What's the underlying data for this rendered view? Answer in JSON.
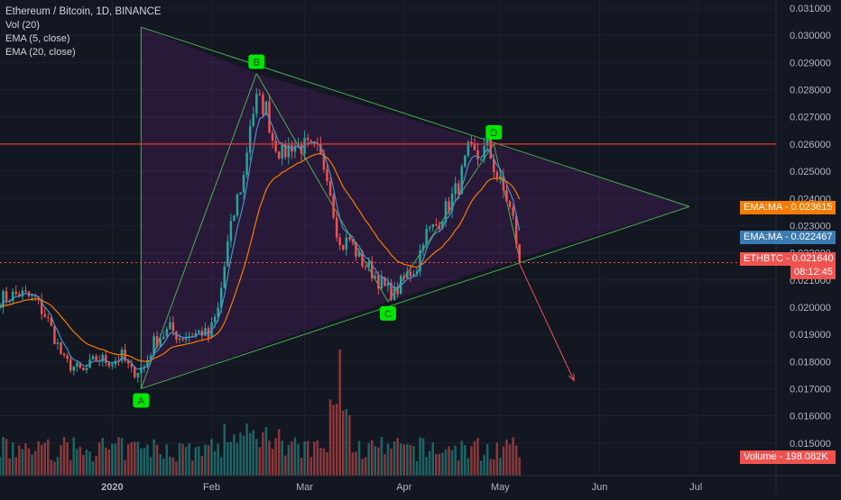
{
  "legend": {
    "symbol": "Ethereum / Bitcoin, 1D, BINANCE",
    "items": [
      "Vol (20)",
      "EMA (5, close)",
      "EMA (20, close)"
    ]
  },
  "tags": {
    "ema20": "EMA:MA - 0.023615",
    "ema5": "EMA:MA - 0.022467",
    "price": "ETHBTC - 0.021640",
    "countdown": "08:12:45",
    "volume": "Volume - 198.082K"
  },
  "colors": {
    "background": "#131722",
    "up": "#26a69a",
    "down": "#ef5350",
    "triangle": "#4caf50",
    "ema_fast": "#4a90c8",
    "ema_slow": "#f57c00",
    "resistance": "#e53935",
    "label_fill": "#00e600"
  },
  "chart_data": {
    "type": "candlestick",
    "title": "Ethereum / Bitcoin, 1D, BINANCE",
    "y_scale": "linear",
    "ylim": [
      0.0138,
      0.0313
    ],
    "y_ticks": [
      "0.015000",
      "0.016000",
      "0.017000",
      "0.018000",
      "0.019000",
      "0.020000",
      "0.021000",
      "0.022000",
      "0.023000",
      "0.024000",
      "0.025000",
      "0.026000",
      "0.027000",
      "0.028000",
      "0.029000",
      "0.030000",
      "0.031000"
    ],
    "x_ticks": [
      "2020",
      "Feb",
      "Mar",
      "Apr",
      "May",
      "Jun",
      "Jul"
    ],
    "x_tick_dates": [
      "2020-01-01",
      "2020-02-01",
      "2020-03-01",
      "2020-04-01",
      "2020-05-01",
      "2020-06-01",
      "2020-07-01"
    ],
    "x_range": [
      "2019-11-27",
      "2020-07-26"
    ],
    "last_date": "2020-05-07",
    "close_anchors": [
      [
        "2019-11-27",
        0.0203
      ],
      [
        "2019-12-03",
        0.0205
      ],
      [
        "2019-12-08",
        0.0203
      ],
      [
        "2019-12-12",
        0.0195
      ],
      [
        "2019-12-17",
        0.018
      ],
      [
        "2019-12-23",
        0.0176
      ],
      [
        "2019-12-27",
        0.0181
      ],
      [
        "2020-01-01",
        0.018
      ],
      [
        "2020-01-04",
        0.0182
      ],
      [
        "2020-01-07",
        0.0176
      ],
      [
        "2020-01-11",
        0.0178
      ],
      [
        "2020-01-14",
        0.0187
      ],
      [
        "2020-01-19",
        0.0192
      ],
      [
        "2020-01-22",
        0.0189
      ],
      [
        "2020-01-26",
        0.019
      ],
      [
        "2020-01-29",
        0.0191
      ],
      [
        "2020-01-31",
        0.0189
      ],
      [
        "2020-02-03",
        0.0199
      ],
      [
        "2020-02-06",
        0.0223
      ],
      [
        "2020-02-09",
        0.024
      ],
      [
        "2020-02-11",
        0.0248
      ],
      [
        "2020-02-13",
        0.0268
      ],
      [
        "2020-02-15",
        0.0276
      ],
      [
        "2020-02-18",
        0.0273
      ],
      [
        "2020-02-20",
        0.0262
      ],
      [
        "2020-02-23",
        0.0256
      ],
      [
        "2020-02-26",
        0.026
      ],
      [
        "2020-03-01",
        0.0259
      ],
      [
        "2020-03-05",
        0.0257
      ],
      [
        "2020-03-08",
        0.025
      ],
      [
        "2020-03-12",
        0.0222
      ],
      [
        "2020-03-15",
        0.0225
      ],
      [
        "2020-03-18",
        0.0218
      ],
      [
        "2020-03-22",
        0.0213
      ],
      [
        "2020-03-26",
        0.0207
      ],
      [
        "2020-03-29",
        0.0205
      ],
      [
        "2020-04-02",
        0.0212
      ],
      [
        "2020-04-05",
        0.0215
      ],
      [
        "2020-04-07",
        0.0226
      ],
      [
        "2020-04-11",
        0.023
      ],
      [
        "2020-04-15",
        0.0238
      ],
      [
        "2020-04-18",
        0.0245
      ],
      [
        "2020-04-21",
        0.0257
      ],
      [
        "2020-04-24",
        0.0255
      ],
      [
        "2020-04-27",
        0.0259
      ],
      [
        "2020-04-30",
        0.0248
      ],
      [
        "2020-05-03",
        0.024
      ],
      [
        "2020-05-05",
        0.0232
      ],
      [
        "2020-05-07",
        0.02164
      ]
    ],
    "volume": {
      "scale_label": "Volume",
      "spike_date": "2020-03-12",
      "relative_to_max": {
        "typical": 0.22,
        "feb_mid": 0.35,
        "mar_crash": 1.0
      }
    },
    "series": [
      {
        "name": "EMA (5, close)",
        "color": "#4a90c8"
      },
      {
        "name": "EMA (20, close)",
        "color": "#f57c00"
      }
    ],
    "annotations": {
      "triangle_points": [
        [
          "2020-01-10",
          0.0303
        ],
        [
          "2020-01-10",
          0.017
        ],
        [
          "2020-02-15",
          0.0286
        ],
        [
          "2020-03-27",
          0.0202
        ],
        [
          "2020-04-29",
          0.026
        ],
        [
          "2020-06-29",
          0.0237
        ],
        [
          "2020-05-07",
          0.0218
        ]
      ],
      "labels": [
        {
          "text": "A",
          "date": "2020-01-10",
          "price": 0.017
        },
        {
          "text": "B",
          "date": "2020-02-15",
          "price": 0.0286
        },
        {
          "text": "C",
          "date": "2020-03-27",
          "price": 0.0202
        },
        {
          "text": "D",
          "date": "2020-04-29",
          "price": 0.026
        }
      ],
      "resistance_price": 0.026,
      "arrow": {
        "from": [
          "2020-05-07",
          0.0216
        ],
        "to": [
          "2020-05-24",
          0.0173
        ]
      }
    }
  }
}
